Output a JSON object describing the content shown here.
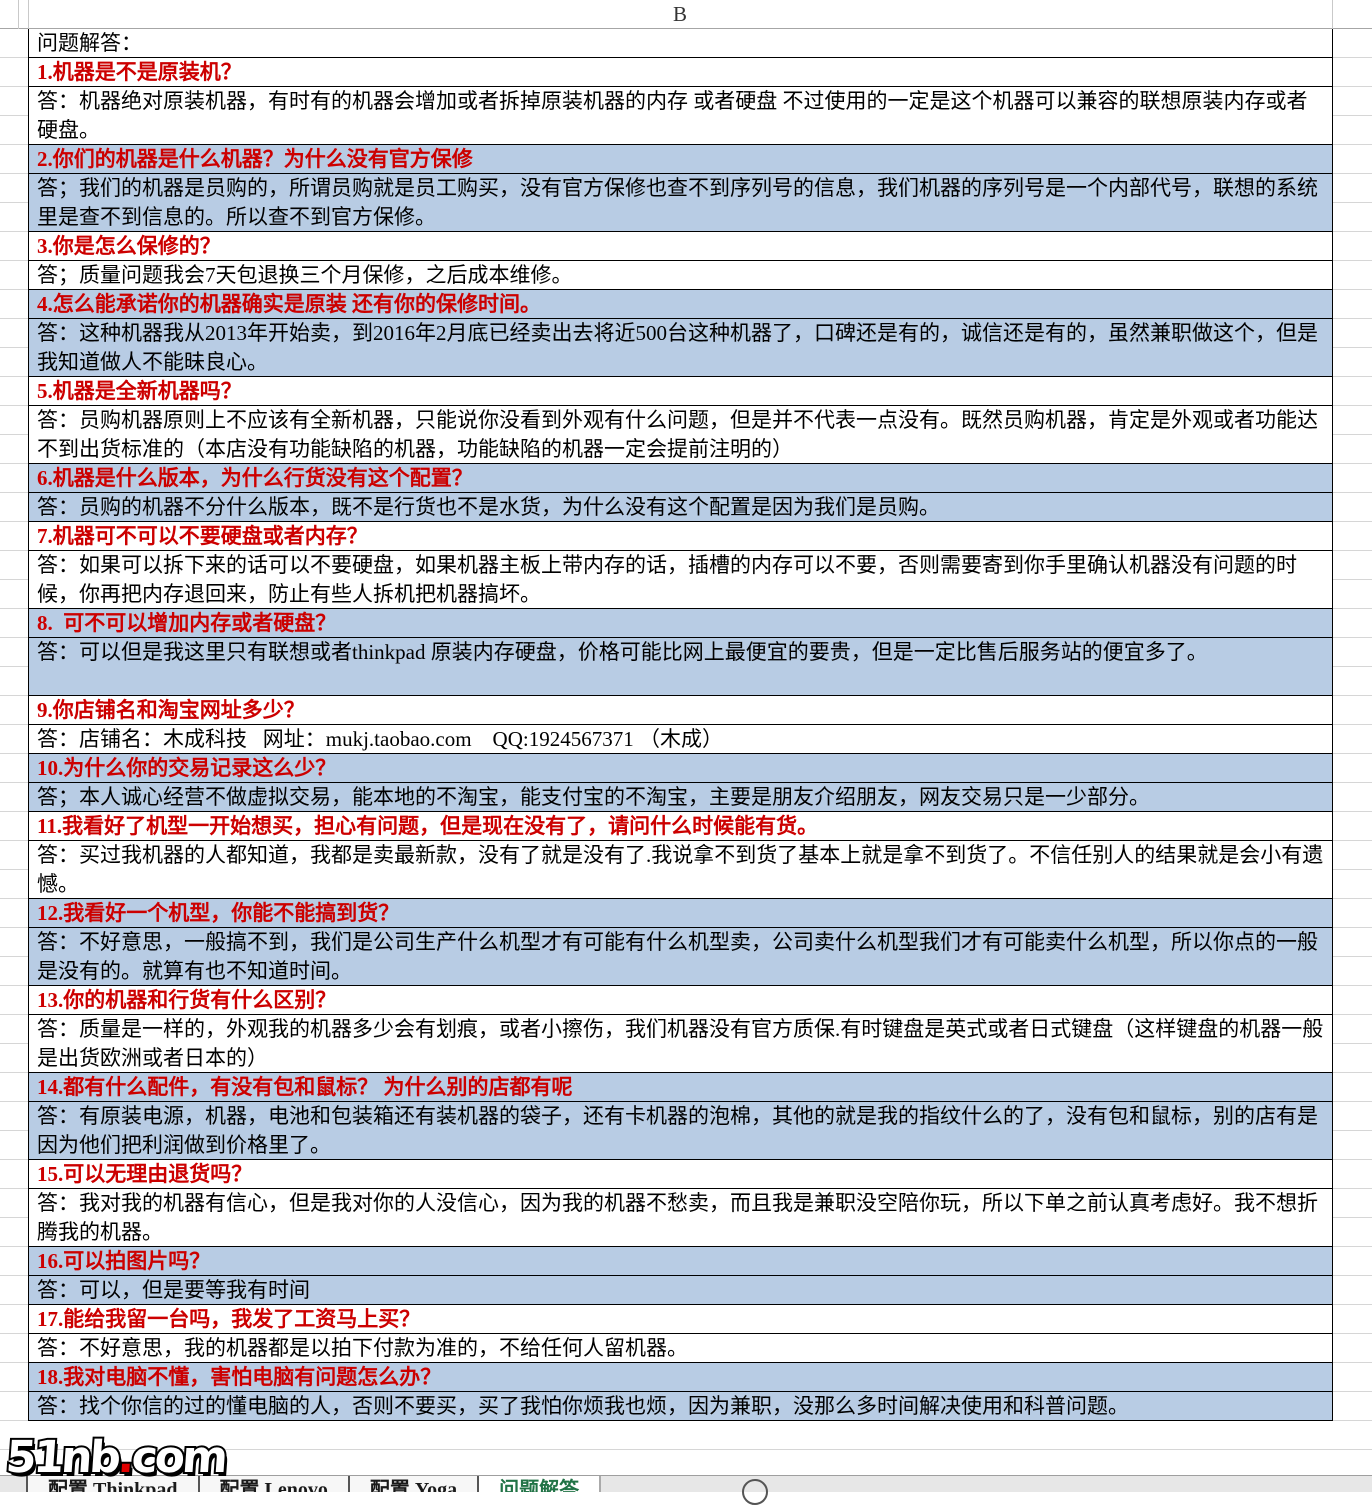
{
  "window": {
    "column_header": "B"
  },
  "sheet": {
    "title": "问题解答：",
    "qa": [
      {
        "q": "1.机器是不是原装机？",
        "a": "答：机器绝对原装机器，有时有的机器会增加或者拆掉原装机器的内存 或者硬盘 不过使用的一定是这个机器可以兼容的联想原装内存或者硬盘。",
        "a_lines": 2,
        "hl": false
      },
      {
        "q": "2.你们的机器是什么机器？为什么没有官方保修",
        "a": "答；我们的机器是员购的，所谓员购就是员工购买，没有官方保修也查不到序列号的信息，我们机器的序列号是一个内部代号，联想的系统里是查不到信息的。所以查不到官方保修。",
        "a_lines": 2,
        "hl": true
      },
      {
        "q": "3.你是怎么保修的？",
        "a": "答；质量问题我会7天包退换三个月保修，之后成本维修。",
        "a_lines": 1,
        "hl": false
      },
      {
        "q": "4.怎么能承诺你的机器确实是原装 还有你的保修时间。",
        "a": "答：这种机器我从2013年开始卖，到2016年2月底已经卖出去将近500台这种机器了，口碑还是有的，诚信还是有的，虽然兼职做这个，但是我知道做人不能昧良心。",
        "a_lines": 2,
        "hl": true
      },
      {
        "q": "5.机器是全新机器吗？",
        "a": "答：员购机器原则上不应该有全新机器，只能说你没看到外观有什么问题，但是并不代表一点没有。既然员购机器，肯定是外观或者功能达不到出货标准的（本店没有功能缺陷的机器，功能缺陷的机器一定会提前注明的）",
        "a_lines": 2,
        "hl": false
      },
      {
        "q": "6.机器是什么版本，为什么行货没有这个配置？",
        "a": "答：员购的机器不分什么版本，既不是行货也不是水货，为什么没有这个配置是因为我们是员购。",
        "a_lines": 1,
        "hl": true
      },
      {
        "q": "7.机器可不可以不要硬盘或者内存？",
        "a": "答：如果可以拆下来的话可以不要硬盘，如果机器主板上带内存的话，插槽的内存可以不要，否则需要寄到你手里确认机器没有问题的时候，你再把内存退回来，防止有些人拆机把机器搞坏。",
        "a_lines": 2,
        "hl": false
      },
      {
        "q": "8.  可不可以增加内存或者硬盘？",
        "a": "答：可以但是我这里只有联想或者thinkpad 原装内存硬盘，价格可能比网上最便宜的要贵，但是一定比售后服务站的便宜多了。",
        "a_lines": 2,
        "hl": true
      },
      {
        "q": "9.你店铺名和淘宝网址多少？",
        "a": "答：店铺名：木成科技   网址：mukj.taobao.com    QQ:1924567371 （木成）",
        "a_lines": 1,
        "hl": false
      },
      {
        "q": "10.为什么你的交易记录这么少？",
        "a": "答；本人诚心经营不做虚拟交易，能本地的不淘宝，能支付宝的不淘宝，主要是朋友介绍朋友，网友交易只是一少部分。",
        "a_lines": 1,
        "hl": true
      },
      {
        "q": "11.我看好了机型一开始想买，担心有问题，但是现在没有了，请问什么时候能有货。",
        "a": "答：买过我机器的人都知道，我都是卖最新款，没有了就是没有了.我说拿不到货了基本上就是拿不到货了。不信任别人的结果就是会小有遗憾。",
        "a_lines": 2,
        "hl": false
      },
      {
        "q": "12.我看好一个机型，你能不能搞到货？",
        "a": "答：不好意思，一般搞不到，我们是公司生产什么机型才有可能有什么机型卖，公司卖什么机型我们才有可能卖什么机型，所以你点的一般是没有的。就算有也不知道时间。",
        "a_lines": 2,
        "hl": true
      },
      {
        "q": "13.你的机器和行货有什么区别？",
        "a": "答：质量是一样的，外观我的机器多少会有划痕，或者小擦伤，我们机器没有官方质保.有时键盘是英式或者日式键盘（这样键盘的机器一般是出货欧洲或者日本的）",
        "a_lines": 2,
        "hl": false
      },
      {
        "q": "14.都有什么配件，有没有包和鼠标？ 为什么别的店都有呢",
        "a": "答：有原装电源，机器，电池和包装箱还有装机器的袋子，还有卡机器的泡棉，其他的就是我的指纹什么的了，没有包和鼠标，别的店有是因为他们把利润做到价格里了。",
        "a_lines": 2,
        "hl": true
      },
      {
        "q": "15.可以无理由退货吗？",
        "a": "答：我对我的机器有信心，但是我对你的人没信心，因为我的机器不愁卖，而且我是兼职没空陪你玩，所以下单之前认真考虑好。我不想折腾我的机器。",
        "a_lines": 2,
        "hl": false
      },
      {
        "q": "16.可以拍图片吗？",
        "a": "答：可以，但是要等我有时间",
        "a_lines": 1,
        "hl": true
      },
      {
        "q": "17.能给我留一台吗，我发了工资马上买？",
        "a": "答：不好意思，我的机器都是以拍下付款为准的，不给任何人留机器。",
        "a_lines": 1,
        "hl": false
      },
      {
        "q": "18.我对电脑不懂，害怕电脑有问题怎么办？",
        "a": "答：找个你信的过的懂电脑的人，否则不要买，买了我怕你烦我也烦，因为兼职，没那么多时间解决使用和科普问题。",
        "a_lines": 1,
        "hl": true
      }
    ]
  },
  "watermark": {
    "left": "51nb",
    "dot": ".",
    "right": "com"
  },
  "tabbar": {
    "tabs": [
      {
        "label": "配置 Thinkpad",
        "active": false
      },
      {
        "label": "配置 Lenovo",
        "active": false
      },
      {
        "label": "配置 Yoga",
        "active": false
      },
      {
        "label": "问题解答",
        "active": true
      }
    ]
  },
  "colors": {
    "highlight_blue": "#b8cce4",
    "question_red": "#cc0000",
    "active_tab_green": "#217346"
  }
}
